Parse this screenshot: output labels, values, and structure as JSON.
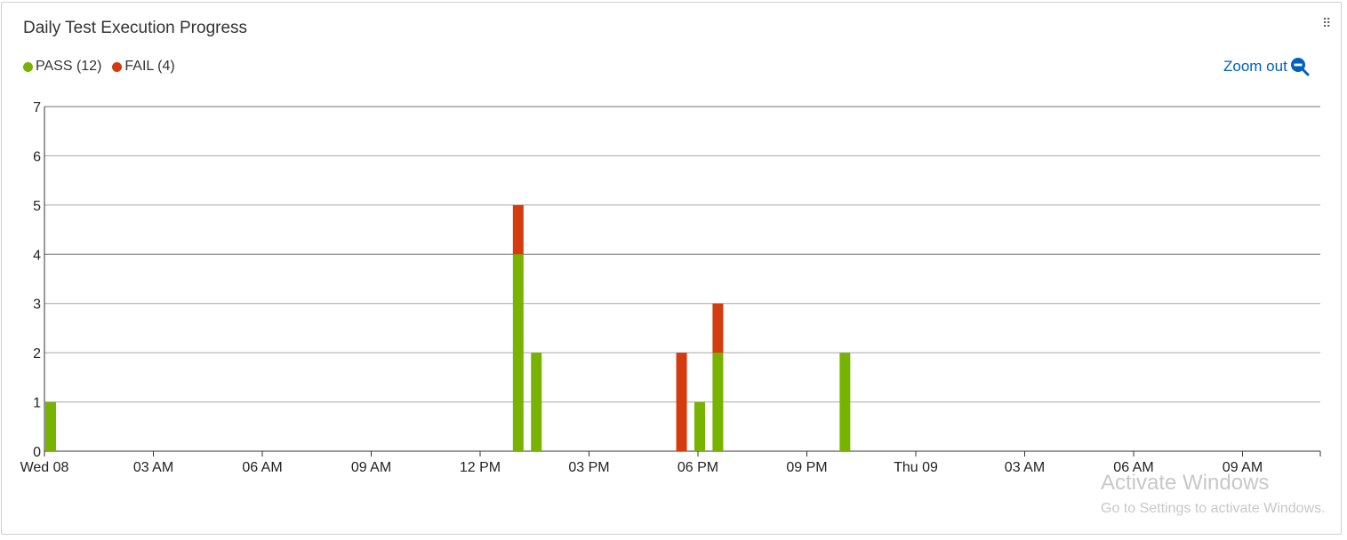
{
  "header": {
    "title": "Daily Test Execution Progress",
    "drag_icon": "drag-handle-icon"
  },
  "legend": {
    "pass_label": "PASS (12)",
    "fail_label": "FAIL (4)"
  },
  "toolbar": {
    "zoom_out_label": "Zoom out",
    "zoom_icon": "zoom-out-icon"
  },
  "colors": {
    "pass": "#77b300",
    "fail": "#d43b0f",
    "grid": "#9e9e9e",
    "accent": "#0060c0"
  },
  "chart_data": {
    "type": "bar",
    "stacked": true,
    "title": "Daily Test Execution Progress",
    "xlabel": "",
    "ylabel": "",
    "ylim": [
      0,
      7
    ],
    "yticks": [
      0,
      1,
      2,
      3,
      4,
      5,
      6,
      7
    ],
    "xlim": [
      "Wed 08 00:00",
      "Thu 09 11:00"
    ],
    "xticks": [
      "Wed 08",
      "03 AM",
      "06 AM",
      "09 AM",
      "12 PM",
      "03 PM",
      "06 PM",
      "09 PM",
      "Thu 09",
      "03 AM",
      "06 AM",
      "09 AM"
    ],
    "grid": true,
    "legend_position": "top-left",
    "bar_interval": "30 minutes",
    "x": [
      "Wed 08 00:00",
      "Wed 08 13:00",
      "Wed 08 13:30",
      "Wed 08 17:30",
      "Wed 08 18:00",
      "Wed 08 18:30",
      "Wed 08 22:00"
    ],
    "series": [
      {
        "name": "PASS",
        "color": "#77b300",
        "values": [
          1,
          4,
          2,
          0,
          1,
          2,
          2
        ]
      },
      {
        "name": "FAIL",
        "color": "#d43b0f",
        "values": [
          0,
          1,
          0,
          2,
          0,
          1,
          0
        ]
      }
    ]
  },
  "watermark": {
    "line1": "Activate Windows",
    "line2": "Go to Settings to activate Windows."
  }
}
